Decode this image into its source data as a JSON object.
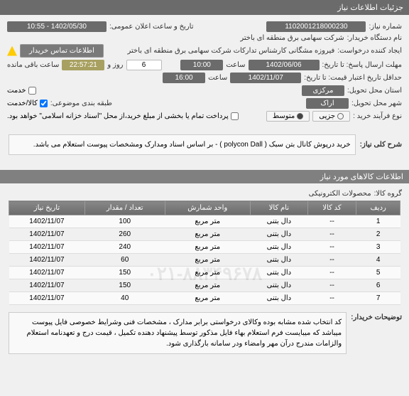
{
  "header": {
    "title": "جزئیات اطلاعات نیاز"
  },
  "form": {
    "need_number_label": "شماره نیاز:",
    "need_number": "1102001218000230",
    "announce_label": "تاریخ و ساعت اعلان عمومی:",
    "announce_value": "1402/05/30 - 10:55",
    "buyer_label": "نام دستگاه خریدار:",
    "buyer_name": "شرکت سهامی برق منطقه ای باختر",
    "creator_label": "ایجاد کننده درخواست:",
    "creator_name": "فیروزه مشگانی کارشناس تدارکات شرکت سهامی برق منطقه ای باختر",
    "contact_btn": "اطلاعات تماس خریدار",
    "deadline_label": "مهلت ارسال پاسخ: تا تاریخ:",
    "deadline_date": "1402/06/06",
    "time_label": "ساعت",
    "deadline_time": "10:00",
    "and_label": "روز و",
    "countdown": "22:57:21",
    "remain_label": "ساعت باقی مانده",
    "remain_count": "6",
    "validity_label": "حداقل تاریخ اعتبار قیمت: تا تاریخ:",
    "validity_date": "1402/11/07",
    "validity_time": "16:00",
    "province_label": "استان محل تحویل:",
    "province": "مرکزی",
    "service_label": "خدمت",
    "city_label": "شهر محل تحویل:",
    "city": "اراک",
    "category_label": "طبقه بندی موضوعی:",
    "goods_label": "کالا/خدمت",
    "process_label": "نوع فرآیند خرید :",
    "process_value": "متوسط",
    "process_option2": "جزیی",
    "payment_note": "پرداخت تمام یا بخشی از مبلغ خرید،از محل \"اسناد خزانه اسلامی\" خواهد بود."
  },
  "sections": {
    "desc_title": "شرح کلی نیاز:",
    "desc_text": "خرید درپوش کانال بتن سبک ( polycon Dall )   - بر اساس اسناد ومدارک ومشخصات پیوست استعلام می باشد.",
    "items_title": "اطلاعات کالاهای مورد نیاز",
    "group_label": "گروه کالا:",
    "group_value": "محصولات الکترونیکی",
    "watermark": "۰۲۱-۸۸۳۴۹۶۷۸",
    "customer_note_label": "توضیحات خریدار:",
    "customer_note": "کد انتخاب شده مشابه بوده وکالای درخواستی برابر مدارک ، مشخصات فنی وشرایط خصوصی فایل پیوست میباشد که میبایست فرم استعلام بهاء فایل مذکور توسط پیشنهاد دهنده تکمیل ، قیمت درج و تعهدنامه استعلام والزامات  مندرج درآن مهر وامضاء ودر سامانه بارگذاری شود."
  },
  "table": {
    "headers": [
      "ردیف",
      "کد کالا",
      "نام کالا",
      "واحد شمارش",
      "تعداد / مقدار",
      "تاریخ نیاز"
    ],
    "rows": [
      [
        "1",
        "--",
        "دال بتنی",
        "متر مربع",
        "100",
        "1402/11/07"
      ],
      [
        "2",
        "--",
        "دال بتنی",
        "متر مربع",
        "260",
        "1402/11/07"
      ],
      [
        "3",
        "--",
        "دال بتنی",
        "متر مربع",
        "240",
        "1402/11/07"
      ],
      [
        "4",
        "--",
        "دال بتنی",
        "متر مربع",
        "60",
        "1402/11/07"
      ],
      [
        "5",
        "--",
        "دال بتنی",
        "متر مربع",
        "150",
        "1402/11/07"
      ],
      [
        "6",
        "--",
        "دال بتنی",
        "متر مربع",
        "150",
        "1402/11/07"
      ],
      [
        "7",
        "--",
        "دال بتنی",
        "متر مربع",
        "40",
        "1402/11/07"
      ]
    ]
  }
}
